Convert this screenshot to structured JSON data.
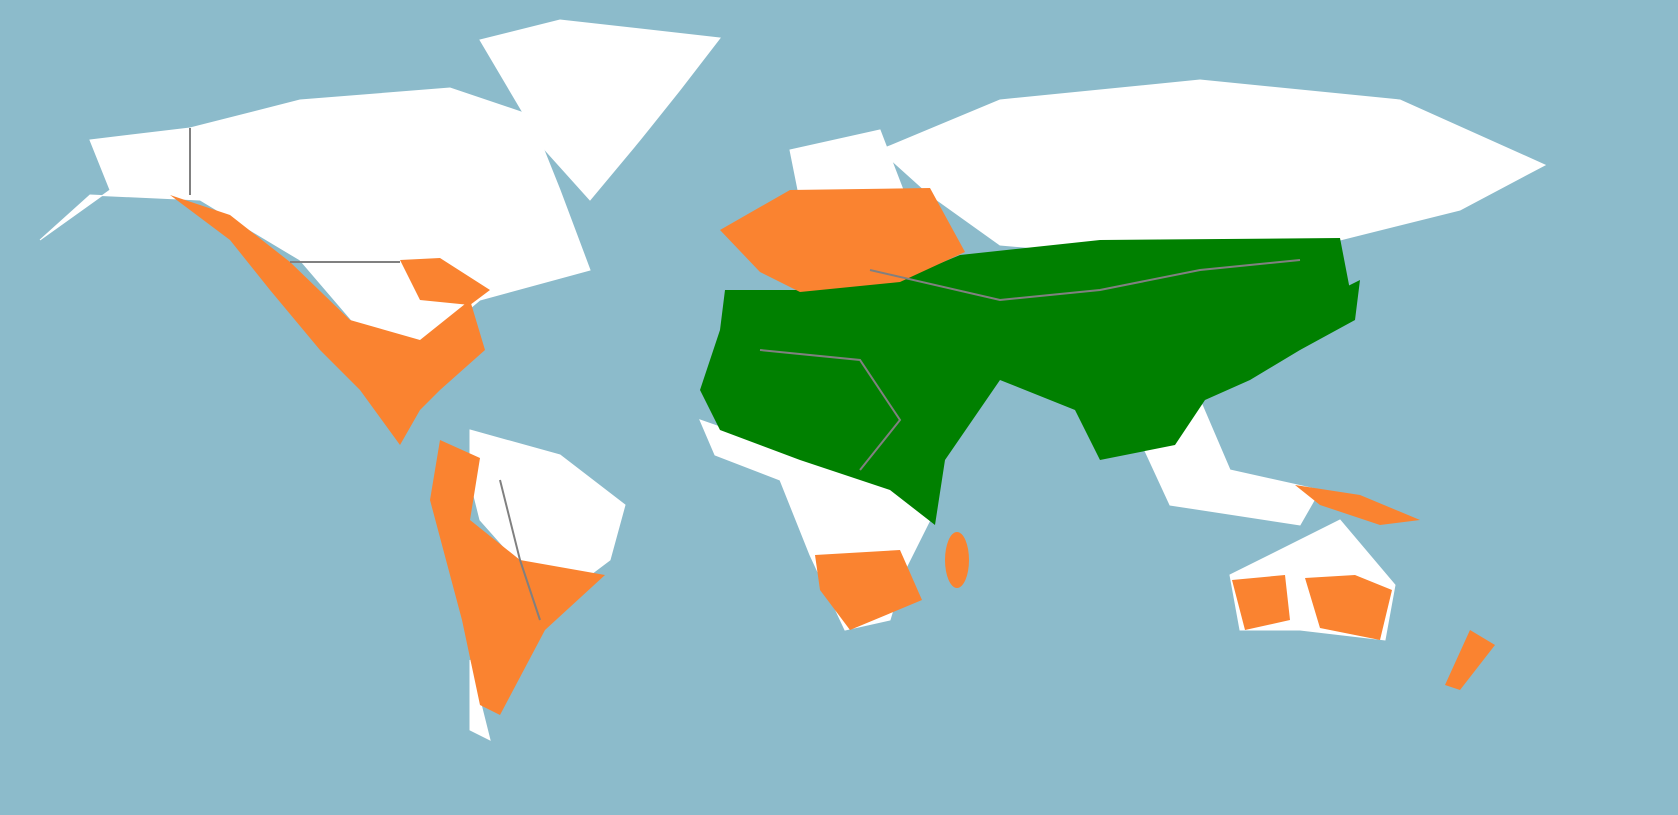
{
  "map": {
    "colors": {
      "ocean": "#8cbbcb",
      "land": "#ffffff",
      "green_region": "#008000",
      "orange_region": "#fa8330",
      "border": "#808080"
    }
  }
}
